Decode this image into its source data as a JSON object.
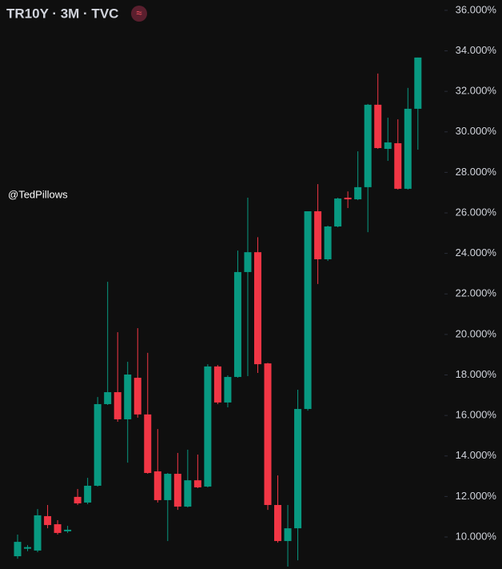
{
  "chart_data": {
    "type": "candlestick",
    "title": "TR10Y · 3M · TVC",
    "icon": "≈",
    "annotation": "@TedPillows",
    "up_color": "#089981",
    "down_color": "#f23645",
    "ylim": [
      8.42,
      36.51
    ],
    "yticks": [
      {
        "value": 10,
        "label": "10.000%"
      },
      {
        "value": 12,
        "label": "12.000%"
      },
      {
        "value": 14,
        "label": "14.000%"
      },
      {
        "value": 16,
        "label": "16.000%"
      },
      {
        "value": 18,
        "label": "18.000%"
      },
      {
        "value": 20,
        "label": "20.000%"
      },
      {
        "value": 22,
        "label": "22.000%"
      },
      {
        "value": 24,
        "label": "24.000%"
      },
      {
        "value": 26,
        "label": "26.000%"
      },
      {
        "value": 28,
        "label": "28.000%"
      },
      {
        "value": 30,
        "label": "30.000%"
      },
      {
        "value": 32,
        "label": "32.000%"
      },
      {
        "value": 34,
        "label": "34.000%"
      },
      {
        "value": 36,
        "label": "36.000%"
      }
    ],
    "open": [
      9.05,
      9.42,
      9.33,
      11.03,
      10.63,
      10.28,
      11.98,
      11.7,
      12.53,
      16.56,
      17.15,
      15.81,
      17.86,
      16.05,
      13.24,
      11.82,
      13.12,
      11.5,
      12.8,
      12.49,
      18.42,
      16.64,
      17.9,
      23.08,
      24.06,
      18.57,
      11.58,
      9.8,
      10.43,
      16.32,
      26.08,
      23.71,
      25.33,
      26.75,
      26.67,
      27.27,
      31.34,
      29.16,
      29.44,
      27.19,
      31.14
    ],
    "high": [
      10.12,
      9.6,
      11.38,
      11.58,
      10.83,
      10.55,
      12.37,
      12.92,
      16.91,
      22.6,
      20.11,
      18.65,
      20.31,
      19.09,
      15.33,
      13.16,
      14.15,
      14.31,
      14.07,
      18.53,
      18.49,
      17.98,
      24.14,
      26.75,
      24.8,
      18.6,
      13.04,
      11.58,
      17.27,
      26.08,
      27.42,
      25.37,
      26.75,
      27.06,
      29.04,
      31.38,
      32.88,
      30.7,
      30.62,
      32.17,
      33.67
    ],
    "low": [
      8.93,
      9.3,
      9.25,
      10.43,
      10.12,
      10.2,
      11.58,
      11.62,
      12.49,
      16.52,
      15.69,
      13.67,
      15.89,
      13.12,
      11.7,
      9.8,
      11.34,
      11.46,
      12.41,
      12.45,
      16.56,
      16.4,
      17.86,
      17.94,
      18.1,
      11.34,
      9.72,
      8.54,
      8.85,
      16.24,
      22.49,
      23.63,
      25.29,
      26.24,
      26.63,
      25.05,
      29.16,
      28.57,
      27.15,
      27.15,
      29.12
    ],
    "close": [
      9.76,
      9.5,
      11.07,
      10.59,
      10.2,
      10.36,
      11.66,
      12.53,
      16.56,
      17.15,
      15.81,
      18.02,
      16.05,
      13.16,
      11.82,
      13.12,
      11.5,
      12.8,
      12.45,
      18.42,
      16.64,
      17.9,
      23.08,
      24.06,
      18.53,
      11.58,
      9.8,
      10.43,
      16.32,
      26.08,
      23.71,
      25.33,
      26.71,
      26.67,
      27.27,
      31.34,
      29.2,
      29.48,
      27.19,
      31.14,
      33.67
    ]
  }
}
